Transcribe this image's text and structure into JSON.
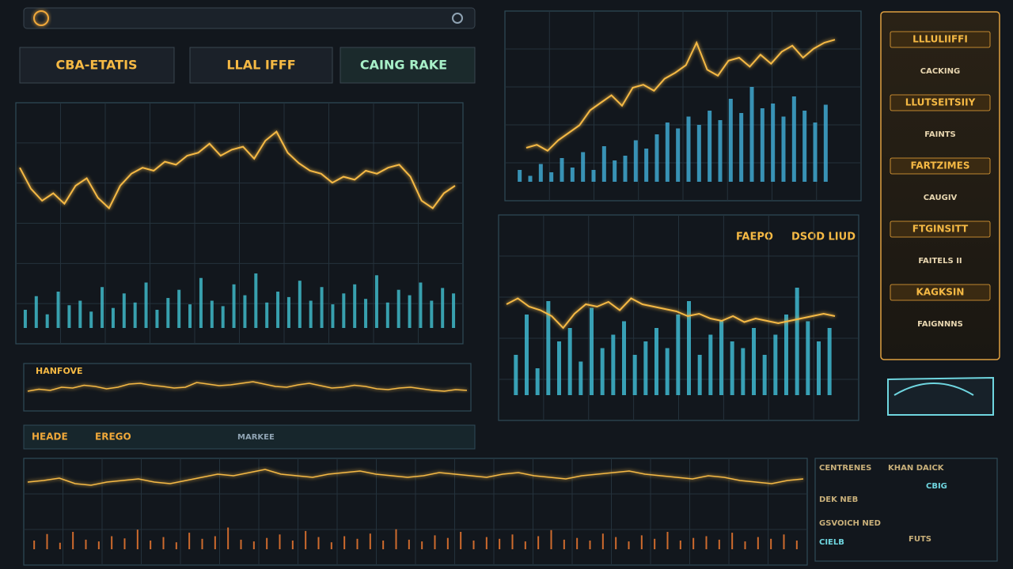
{
  "header": {
    "tabs": [
      "CBA-ETATIS",
      "LLAL IFFF",
      "CAING RAKE"
    ]
  },
  "main_chart": {
    "price": [
      62,
      48,
      40,
      45,
      38,
      50,
      55,
      42,
      35,
      50,
      58,
      62,
      60,
      66,
      64,
      70,
      72,
      78,
      70,
      74,
      76,
      68,
      80,
      86,
      72,
      65,
      60,
      58,
      52,
      56,
      54,
      60,
      58,
      62,
      64,
      56,
      40,
      35,
      45,
      50
    ],
    "volume": [
      20,
      35,
      15,
      40,
      25,
      30,
      18,
      45,
      22,
      38,
      28,
      50,
      20,
      33,
      42,
      26,
      55,
      30,
      24,
      48,
      36,
      60,
      28,
      40,
      34,
      52,
      30,
      45,
      26,
      38,
      48,
      32,
      58,
      28,
      42,
      36,
      50,
      30,
      44,
      38
    ]
  },
  "top_right_chart": {
    "price": [
      20,
      22,
      18,
      25,
      30,
      35,
      45,
      50,
      55,
      48,
      60,
      62,
      58,
      66,
      70,
      75,
      90,
      72,
      68,
      78,
      80,
      74,
      82,
      76,
      84,
      88,
      80,
      86,
      90,
      92
    ],
    "volume": [
      10,
      5,
      15,
      8,
      20,
      12,
      25,
      10,
      30,
      18,
      22,
      35,
      28,
      40,
      50,
      45,
      55,
      48,
      60,
      52,
      70,
      58,
      80,
      62,
      66,
      55,
      72,
      60,
      50,
      65
    ]
  },
  "mid_right_chart": {
    "labels": [
      "FAEPO",
      "DSOD LIUD"
    ],
    "price": [
      50,
      55,
      48,
      45,
      40,
      30,
      42,
      50,
      48,
      52,
      45,
      55,
      50,
      48,
      46,
      44,
      40,
      42,
      38,
      36,
      40,
      35,
      38,
      36,
      34,
      36,
      38,
      40,
      42,
      40
    ],
    "volume": [
      30,
      60,
      20,
      70,
      40,
      50,
      25,
      65,
      35,
      45,
      55,
      30,
      40,
      50,
      35,
      60,
      70,
      30,
      45,
      55,
      40,
      35,
      50,
      30,
      45,
      60,
      80,
      55,
      40,
      50
    ]
  },
  "strip_chart": {
    "label": "HANFOVE",
    "values": [
      40,
      45,
      42,
      50,
      48,
      55,
      52,
      46,
      50,
      58,
      60,
      55,
      52,
      48,
      50,
      62,
      58,
      54,
      56,
      60,
      64,
      58,
      52,
      50,
      56,
      60,
      54,
      48,
      50,
      55,
      52,
      46,
      44,
      48,
      50,
      46,
      42,
      40,
      44,
      42
    ]
  },
  "toolbar": {
    "items": [
      "HEADE",
      "EREGO",
      "MARKEE"
    ]
  },
  "bottom_chart": {
    "line": [
      50,
      52,
      55,
      48,
      46,
      50,
      52,
      54,
      50,
      48,
      52,
      56,
      60,
      58,
      62,
      66,
      60,
      58,
      56,
      60,
      62,
      64,
      60,
      58,
      56,
      58,
      62,
      60,
      58,
      56,
      60,
      62,
      58,
      56,
      54,
      58,
      60,
      62,
      64,
      60,
      58,
      56,
      54,
      58,
      56,
      52,
      50,
      48,
      52,
      54
    ],
    "spikes": [
      20,
      35,
      15,
      40,
      22,
      18,
      30,
      25,
      45,
      20,
      28,
      16,
      38,
      24,
      30,
      50,
      22,
      18,
      26,
      34,
      20,
      42,
      28,
      16,
      30,
      24,
      36,
      20,
      46,
      22,
      18,
      32,
      26,
      40,
      20,
      28,
      24,
      34,
      18,
      30,
      44,
      22,
      26,
      20,
      36,
      28,
      18,
      32,
      24,
      40,
      20,
      26,
      30,
      22,
      38,
      18,
      28,
      24,
      34,
      20
    ]
  },
  "sidebar": {
    "items": [
      "LLLULIIFFI",
      "CACKING",
      "LLUTSEITSIIY",
      "FAINTS",
      "FARTZIMES",
      "CAUGIV",
      "FTGINSITT",
      "FAITELS II",
      "KAGKSIN",
      "FAIGNNNS"
    ]
  },
  "bottom_right": {
    "labels": [
      "CENTRENES",
      "KHAN DAICK",
      "CBIG",
      "DEK NEB",
      "GSVOICH NED",
      "CIELB",
      "FUTS"
    ]
  }
}
